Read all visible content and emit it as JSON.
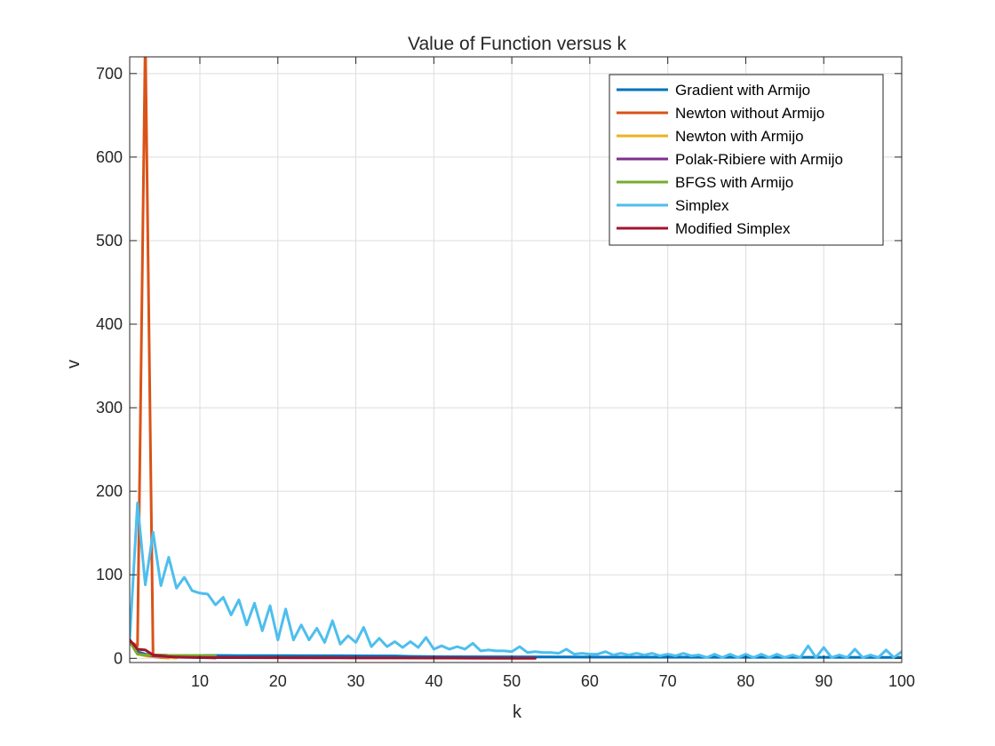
{
  "chart_data": {
    "type": "line",
    "title": "Value of Function versus k",
    "xlabel": "k",
    "ylabel": "v",
    "xlim": [
      1,
      100
    ],
    "ylim": [
      -5,
      720
    ],
    "xticks": [
      10,
      20,
      30,
      40,
      50,
      60,
      70,
      80,
      90,
      100
    ],
    "yticks": [
      0,
      100,
      200,
      300,
      400,
      500,
      600,
      700
    ],
    "grid": true,
    "legend_position": "top-right",
    "series": [
      {
        "name": "Gradient with Armijo",
        "color": "#0072BD",
        "x": [
          1,
          2,
          3,
          4,
          5,
          6,
          8,
          10,
          15,
          20,
          25,
          30,
          35,
          37,
          40,
          50,
          60,
          70,
          80,
          90,
          100
        ],
        "y": [
          20,
          8,
          5,
          4,
          4,
          3.5,
          3.5,
          3.5,
          3.3,
          3.2,
          3.1,
          3.0,
          2.8,
          2.3,
          2.0,
          1.8,
          1.5,
          1.4,
          1.3,
          1.2,
          1.1
        ]
      },
      {
        "name": "Newton without Armijo",
        "color": "#D95319",
        "x": [
          1,
          2,
          3,
          4,
          5,
          6
        ],
        "y": [
          20,
          15,
          745,
          2,
          1,
          0.5
        ]
      },
      {
        "name": "Newton with Armijo",
        "color": "#EDB120",
        "x": [
          1,
          2,
          3,
          4,
          5,
          6,
          7
        ],
        "y": [
          20,
          5,
          3,
          2,
          1.5,
          1,
          0.5
        ]
      },
      {
        "name": "Polak-Ribiere with Armijo",
        "color": "#7E2F8E",
        "x": [
          1,
          2,
          3,
          4,
          5,
          6,
          8,
          10,
          12
        ],
        "y": [
          20,
          6,
          4,
          3,
          2.5,
          2,
          1.5,
          1,
          0.5
        ]
      },
      {
        "name": "BFGS with Armijo",
        "color": "#77AC30",
        "x": [
          1,
          2,
          3,
          4,
          5,
          6,
          8,
          10,
          12
        ],
        "y": [
          20,
          5,
          4,
          4,
          4,
          3.5,
          3.5,
          3.5,
          3
        ]
      },
      {
        "name": "Simplex",
        "color": "#4DBEEE",
        "x": [
          1,
          2,
          3,
          4,
          5,
          6,
          7,
          8,
          9,
          10,
          11,
          12,
          13,
          14,
          15,
          16,
          17,
          18,
          19,
          20,
          21,
          22,
          23,
          24,
          25,
          26,
          27,
          28,
          29,
          30,
          31,
          32,
          33,
          34,
          35,
          36,
          37,
          38,
          39,
          40,
          41,
          42,
          43,
          44,
          45,
          46,
          47,
          48,
          49,
          50,
          51,
          52,
          53,
          54,
          55,
          56,
          57,
          58,
          59,
          60,
          61,
          62,
          63,
          64,
          65,
          66,
          67,
          68,
          69,
          70,
          71,
          72,
          73,
          74,
          75,
          76,
          77,
          78,
          79,
          80,
          81,
          82,
          83,
          84,
          85,
          86,
          87,
          88,
          89,
          90,
          91,
          92,
          93,
          94,
          95,
          96,
          97,
          98,
          99,
          100
        ],
        "y": [
          22,
          186,
          88,
          151,
          87,
          121,
          84,
          97,
          81,
          78,
          77,
          64,
          73,
          52,
          70,
          40,
          66,
          33,
          63,
          22,
          59,
          22,
          40,
          22,
          36,
          19,
          45,
          17,
          27,
          19,
          37,
          14,
          24,
          14,
          20,
          13,
          20,
          13,
          25,
          11,
          15,
          11,
          14,
          11,
          18,
          9,
          10,
          9,
          9,
          8,
          14,
          7,
          8,
          7,
          7,
          6,
          11,
          5,
          6,
          5,
          5,
          8,
          4,
          6,
          4,
          6,
          4,
          6,
          3,
          5,
          3,
          6,
          3,
          4,
          1,
          5,
          1,
          5,
          1,
          5,
          1,
          5,
          1,
          5,
          1,
          4,
          1,
          15,
          1,
          13,
          1,
          4,
          1,
          11,
          1,
          4,
          1,
          10,
          1,
          8
        ]
      },
      {
        "name": "Modified Simplex",
        "color": "#A2142F",
        "x": [
          1,
          2,
          3,
          4,
          5,
          6,
          7,
          8,
          10,
          15,
          20,
          25,
          30,
          35,
          40,
          45,
          50,
          53
        ],
        "y": [
          22,
          11,
          10,
          4,
          3,
          2,
          1.5,
          1.2,
          1.0,
          0.8,
          0.7,
          0.6,
          0.5,
          0.4,
          0.3,
          0.2,
          0.1,
          0.1
        ]
      }
    ]
  }
}
